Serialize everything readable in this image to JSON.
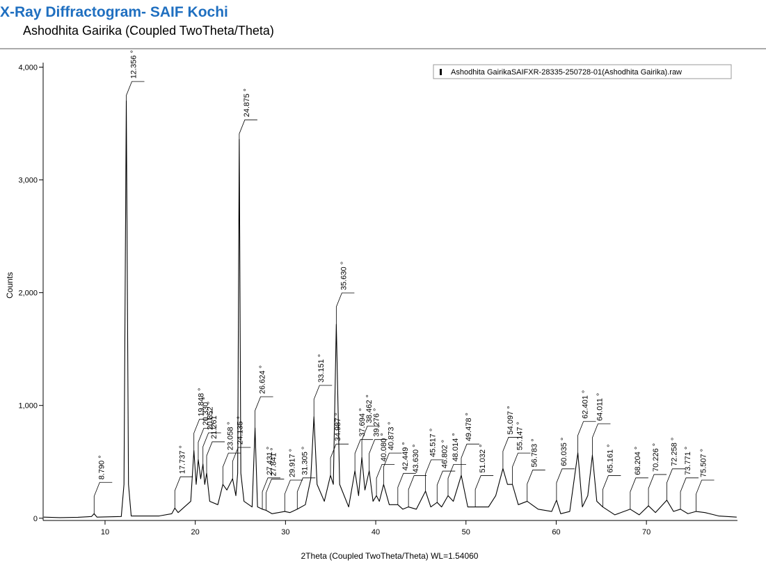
{
  "chart_data": {
    "type": "line",
    "header": "X-Ray Diffractogram- SAIF Kochi",
    "title": "Ashodhita Gairika (Coupled TwoTheta/Theta)",
    "xlabel": "2Theta (Coupled TwoTheta/Theta) WL=1.54060",
    "ylabel": "Counts",
    "xlim": [
      3.14,
      80.09
    ],
    "ylim": [
      -20,
      4040
    ],
    "xticks": [
      10,
      20,
      30,
      40,
      50,
      60,
      70
    ],
    "yticks": [
      0,
      {
        "value": 1000,
        "label": "1,000"
      },
      {
        "value": 2000,
        "label": "2,000"
      },
      {
        "value": 3000,
        "label": "3,000"
      },
      {
        "value": 4000,
        "label": "4,000"
      }
    ],
    "legend": "upper right",
    "series": [
      {
        "name": "Ashodhita GairikaSAIFXR-28335-250728-01(Ashodhita Gairika).raw",
        "color": "#000000",
        "x": [
          3.2,
          5,
          7,
          8.5,
          8.79,
          9.1,
          11.8,
          12.1,
          12.356,
          12.6,
          12.9,
          16,
          17.4,
          17.737,
          18.1,
          19.5,
          19.848,
          20.1,
          20.33,
          20.6,
          20.852,
          21.05,
          21.261,
          21.6,
          22.5,
          23.058,
          23.5,
          24.135,
          24.5,
          24.7,
          24.875,
          25.05,
          25.4,
          26.3,
          26.624,
          26.9,
          27.431,
          27.841,
          28.5,
          29.917,
          30.5,
          31.305,
          32.2,
          32.8,
          33.151,
          33.5,
          34.3,
          34.987,
          35.3,
          35.63,
          36,
          37,
          37.694,
          38.1,
          38.462,
          38.8,
          39.276,
          39.7,
          40.08,
          40.4,
          40.873,
          41.5,
          42.449,
          43,
          43.63,
          44.5,
          45.517,
          46.1,
          46.802,
          47.3,
          48.014,
          48.6,
          49.478,
          50.2,
          51.032,
          52.5,
          53.3,
          54.097,
          54.6,
          55.147,
          55.8,
          56.783,
          58,
          59.5,
          60.035,
          60.5,
          61.5,
          62.401,
          62.9,
          63.5,
          64.011,
          64.5,
          65.161,
          66.5,
          68.204,
          69.2,
          70.226,
          71,
          72.258,
          73,
          73.771,
          74.6,
          75.507,
          76.5,
          78,
          80
        ],
        "values": [
          10,
          5,
          8,
          15,
          40,
          10,
          15,
          300,
          3700,
          300,
          20,
          20,
          40,
          90,
          50,
          150,
          600,
          300,
          520,
          350,
          480,
          300,
          400,
          150,
          120,
          300,
          250,
          350,
          200,
          400,
          3360,
          400,
          150,
          100,
          800,
          100,
          80,
          70,
          40,
          60,
          50,
          80,
          120,
          350,
          900,
          300,
          150,
          380,
          300,
          1720,
          300,
          100,
          420,
          200,
          540,
          250,
          420,
          150,
          200,
          150,
          300,
          120,
          120,
          80,
          100,
          80,
          240,
          100,
          140,
          100,
          200,
          150,
          380,
          100,
          100,
          100,
          200,
          440,
          300,
          300,
          120,
          150,
          80,
          60,
          160,
          40,
          60,
          580,
          100,
          200,
          560,
          150,
          100,
          30,
          80,
          30,
          110,
          50,
          160,
          60,
          80,
          40,
          60,
          50,
          20,
          10
        ]
      }
    ],
    "annotations": [
      {
        "x": 8.79,
        "y": 40,
        "label": "8.790 °"
      },
      {
        "x": 12.356,
        "y": 3700,
        "label": "12.356 °"
      },
      {
        "x": 17.737,
        "y": 90,
        "label": "17.737 °"
      },
      {
        "x": 19.848,
        "y": 600,
        "label": "19.848 °"
      },
      {
        "x": 20.33,
        "y": 520,
        "label": "20.330 °"
      },
      {
        "x": 20.852,
        "y": 480,
        "label": "20.852 °"
      },
      {
        "x": 21.261,
        "y": 400,
        "label": "21.261 °"
      },
      {
        "x": 23.058,
        "y": 300,
        "label": "23.058 °"
      },
      {
        "x": 24.135,
        "y": 350,
        "label": "24.135 °"
      },
      {
        "x": 24.875,
        "y": 3360,
        "label": "24.875 °"
      },
      {
        "x": 26.624,
        "y": 800,
        "label": "26.624 °"
      },
      {
        "x": 27.431,
        "y": 80,
        "label": "27.431 °"
      },
      {
        "x": 27.841,
        "y": 70,
        "label": "27.841 °"
      },
      {
        "x": 29.917,
        "y": 60,
        "label": "29.917 °"
      },
      {
        "x": 31.305,
        "y": 80,
        "label": "31.305 °"
      },
      {
        "x": 33.151,
        "y": 900,
        "label": "33.151 °"
      },
      {
        "x": 34.987,
        "y": 380,
        "label": "34.987 °"
      },
      {
        "x": 35.63,
        "y": 1720,
        "label": "35.630 °"
      },
      {
        "x": 37.694,
        "y": 420,
        "label": "37.694 °"
      },
      {
        "x": 38.462,
        "y": 540,
        "label": "38.462 °"
      },
      {
        "x": 39.276,
        "y": 420,
        "label": "39.276 °"
      },
      {
        "x": 40.08,
        "y": 200,
        "label": "40.080 °"
      },
      {
        "x": 40.873,
        "y": 300,
        "label": "40.873 °"
      },
      {
        "x": 42.449,
        "y": 120,
        "label": "42.449 °"
      },
      {
        "x": 43.63,
        "y": 100,
        "label": "43.630 °"
      },
      {
        "x": 45.517,
        "y": 240,
        "label": "45.517 °"
      },
      {
        "x": 46.802,
        "y": 140,
        "label": "46.802 °"
      },
      {
        "x": 48.014,
        "y": 200,
        "label": "48.014 °"
      },
      {
        "x": 49.478,
        "y": 380,
        "label": "49.478 °"
      },
      {
        "x": 51.032,
        "y": 100,
        "label": "51.032 °"
      },
      {
        "x": 54.097,
        "y": 440,
        "label": "54.097 °"
      },
      {
        "x": 55.147,
        "y": 300,
        "label": "55.147 °"
      },
      {
        "x": 56.783,
        "y": 150,
        "label": "56.783 °"
      },
      {
        "x": 60.035,
        "y": 160,
        "label": "60.035 °"
      },
      {
        "x": 62.401,
        "y": 580,
        "label": "62.401 °"
      },
      {
        "x": 64.011,
        "y": 560,
        "label": "64.011 °"
      },
      {
        "x": 65.161,
        "y": 100,
        "label": "65.161 °"
      },
      {
        "x": 68.204,
        "y": 80,
        "label": "68.204 °"
      },
      {
        "x": 70.226,
        "y": 110,
        "label": "70.226 °"
      },
      {
        "x": 72.258,
        "y": 160,
        "label": "72.258 °"
      },
      {
        "x": 73.771,
        "y": 80,
        "label": "73.771 °"
      },
      {
        "x": 75.507,
        "y": 60,
        "label": "75.507 °"
      }
    ]
  }
}
